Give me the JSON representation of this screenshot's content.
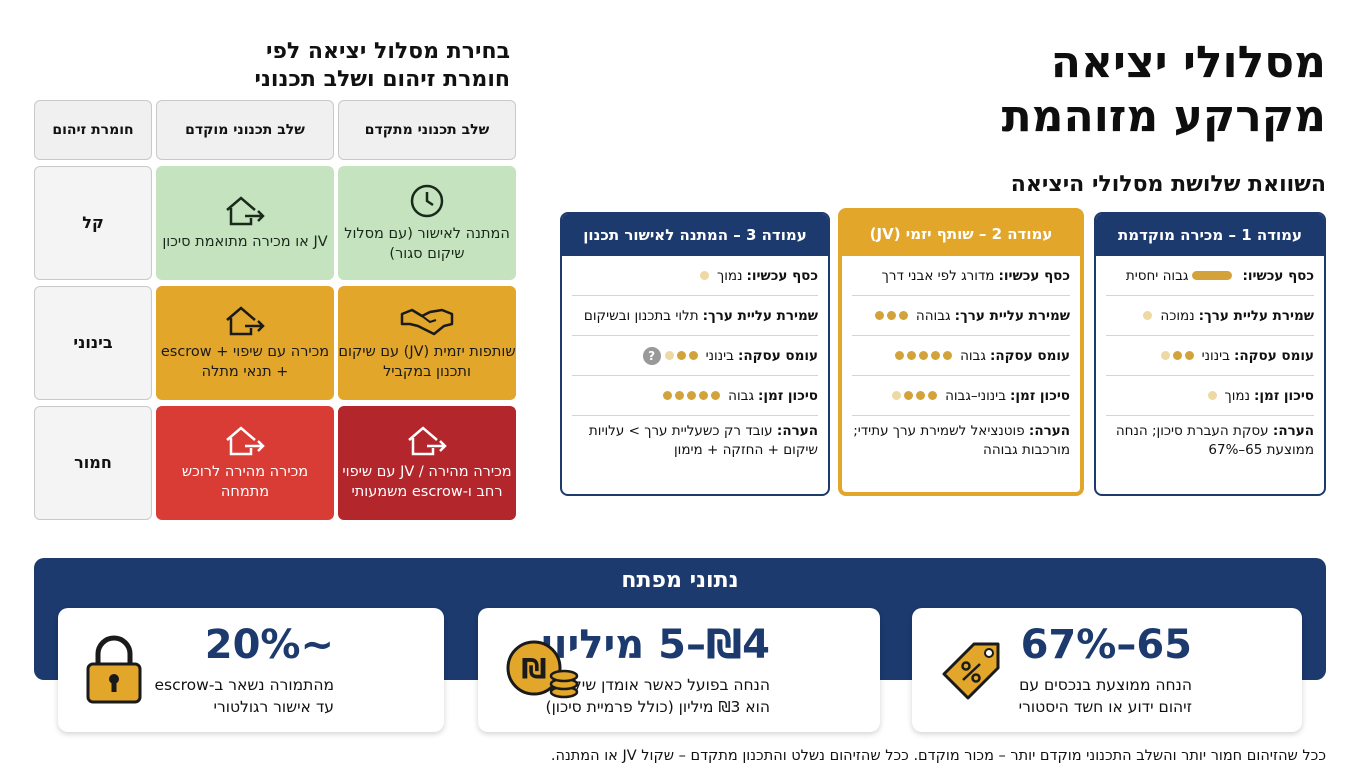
{
  "title": {
    "line1": "מסלולי יציאה",
    "line2": "מקרקע מזוהמת"
  },
  "subtitle": "השוואת שלושת מסלולי היציאה",
  "columns": [
    {
      "header": "עמודה 1 – מכירה מוקדמת",
      "rows": [
        {
          "label": "כסף עכשיו:",
          "value": "גבוה יחסית",
          "indicator": "bar"
        },
        {
          "label": "שמירת עליית ערך:",
          "value": "נמוכה",
          "indicator": "1 dot"
        },
        {
          "label": "עומס עסקה:",
          "value": "בינוני",
          "indicator": "3 dots"
        },
        {
          "label": "סיכון זמן:",
          "value": "נמוך",
          "indicator": "1 dot"
        }
      ],
      "note_label": "הערה:",
      "note": "עסקת העברת סיכון; הנחה ממוצעת 65–67%"
    },
    {
      "header": "עמודה 2 – שותף יזמי (JV)",
      "rows": [
        {
          "label": "כסף עכשיו:",
          "value": "מדורג לפי אבני דרך"
        },
        {
          "label": "שמירת עליית ערך:",
          "value": "גבוהה",
          "indicator": "3 dots"
        },
        {
          "label": "עומס עסקה:",
          "value": "גבוה",
          "indicator": "5 dots"
        },
        {
          "label": "סיכון זמן:",
          "value": "בינוני–גבוה",
          "indicator": "4 dots"
        }
      ],
      "note_label": "הערה:",
      "note": "פוטנציאל לשמירת ערך עתידי; מורכבות גבוהה"
    },
    {
      "header": "עמודה 3 – המתנה לאישור תכנון",
      "rows": [
        {
          "label": "כסף עכשיו:",
          "value": "נמוך",
          "indicator": "1 dot"
        },
        {
          "label": "שמירת עליית ערך:",
          "value": "תלוי בתכנון ובשיקום"
        },
        {
          "label": "עומס עסקה:",
          "value": "בינוני",
          "indicator": "3 dots",
          "extra": "?"
        },
        {
          "label": "סיכון זמן:",
          "value": "גבוה",
          "indicator": "5 dots"
        }
      ],
      "note_label": "הערה:",
      "note": "עובד רק כשעליית ערך > עלויות שיקום + החזקה + מימון"
    }
  ],
  "matrix": {
    "title": "בחירת מסלול יציאה לפי חומרת זיהום ושלב תכנוני",
    "headers": [
      "חומרת זיהום",
      "שלב תכנוני מוקדם",
      "שלב תכנוני מתקדם"
    ],
    "rows": [
      {
        "label": "קל",
        "early": "JV או מכירה מתואמת סיכון",
        "advanced": "המתנה לאישור (עם מסלול שיקום סגור)"
      },
      {
        "label": "בינוני",
        "early": "מכירה עם שיפוי + escrow + תנאי מתלה",
        "advanced": "שותפות יזמית (JV) עם שיקום ותכנון במקביל"
      },
      {
        "label": "חמור",
        "early": "מכירה מהירה לרוכש מתמחה",
        "advanced": "מכירה מהירה / JV עם שיפוי רחב ו-escrow משמעותי"
      }
    ]
  },
  "key_data": {
    "title": "נתוני מפתח",
    "cards": [
      {
        "value": "65–67%",
        "desc_line1": "הנחה ממוצעת בנכסים עם",
        "desc_line2": "זיהום ידוע או חשד היסטורי",
        "icon": "percent-tag-icon"
      },
      {
        "value": "₪4–5 מיליון",
        "desc_line1": "הנחה בפועל כאשר אומדן שיקום",
        "desc_line2": "הוא ₪3 מיליון (כולל פרמיית סיכון)",
        "icon": "shekel-coins-icon"
      },
      {
        "value": "~20%",
        "desc_line1": "מהתמורה נשאר ב-escrow",
        "desc_line2": "עד אישור רגולטורי",
        "icon": "padlock-icon"
      }
    ]
  },
  "footnote": "ככל שהזיהום חמור יותר והשלב התכנוני מוקדם יותר – מכור מוקדם. ככל שהזיהום נשלט והתכנון מתקדם – שקול JV או המתנה.",
  "colors": {
    "navy": "#1c3a6e",
    "gold": "#e2a62a",
    "green": "#c6e3c0",
    "red": "#d93b35",
    "dark_red": "#b3262b"
  }
}
